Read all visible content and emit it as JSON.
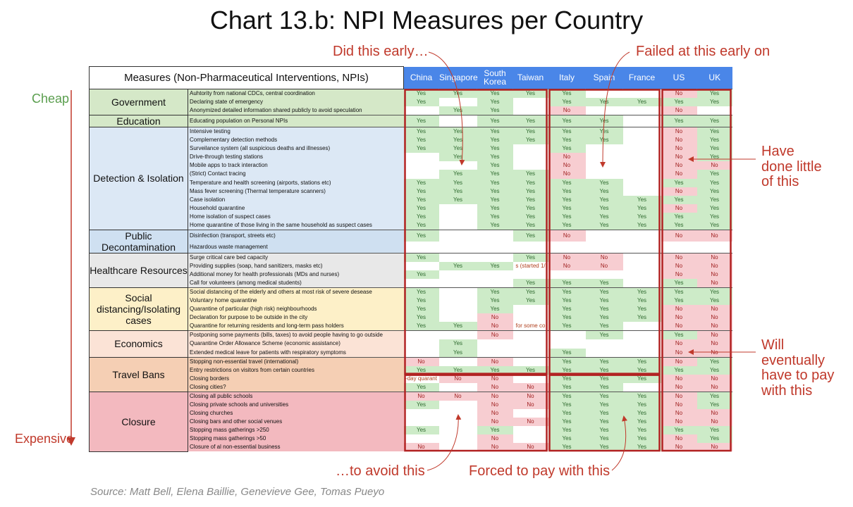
{
  "title": "Chart 13.b: NPI Measures per Country",
  "source": "Source: Matt Bell, Elena Baillie, Genevieve Gee, Tomas Pueyo",
  "side_labels": {
    "top": "Cheap",
    "bottom": "Expensive"
  },
  "annotations": {
    "did_early": "Did this early…",
    "failed_early": "Failed at this early on",
    "done_little": "Have done little of this",
    "pay_eventually": "Will eventually have to pay with this",
    "to_avoid": "…to avoid this",
    "forced_pay": "Forced to pay with this"
  },
  "chart_data": {
    "type": "table",
    "title": "Chart 13.b: NPI Measures per Country",
    "header": "Measures (Non-Pharmaceutical Interventions, NPIs)",
    "countries": [
      "China",
      "Singapore",
      "South Korea",
      "Taiwan",
      "Italy",
      "Spain",
      "France",
      "US",
      "UK"
    ],
    "groups": [
      {
        "name": "Government",
        "colors": {
          "bg": "#d5e8c8"
        },
        "rows": [
          {
            "m": "Auhtority from national CDCs, central coordination",
            "v": [
              "Yes",
              "Yes",
              "Yes",
              "Yes",
              "Yes",
              "",
              "",
              "No",
              "Yes"
            ]
          },
          {
            "m": "Declaring state of emergency",
            "v": [
              "Yes",
              "",
              "Yes",
              "",
              "Yes",
              "Yes",
              "Yes",
              "Yes",
              "Yes"
            ]
          },
          {
            "m": "Anonymized detailed information shared publicly to avoid speculation",
            "v": [
              "",
              "Yes",
              "Yes",
              "",
              "No",
              "",
              "",
              "No",
              ""
            ]
          }
        ]
      },
      {
        "name": "Education",
        "colors": {
          "bg": "#d5e8c8"
        },
        "rows": [
          {
            "m": "Educating population on Personal NPIs",
            "v": [
              "Yes",
              "",
              "Yes",
              "Yes",
              "Yes",
              "Yes",
              "",
              "Yes",
              "Yes"
            ]
          }
        ]
      },
      {
        "name": "Detection & Isolation",
        "colors": {
          "bg": "#dce8f5"
        },
        "rows": [
          {
            "m": "Intensive testing",
            "v": [
              "Yes",
              "Yes",
              "Yes",
              "Yes",
              "Yes",
              "Yes",
              "",
              "No",
              "Yes"
            ]
          },
          {
            "m": "Complementary detection methods",
            "v": [
              "Yes",
              "Yes",
              "Yes",
              "Yes",
              "Yes",
              "Yes",
              "",
              "No",
              "Yes"
            ]
          },
          {
            "m": "Surveilance system (all suspicious deaths and illnesses)",
            "v": [
              "Yes",
              "Yes",
              "Yes",
              "",
              "Yes",
              "",
              "",
              "No",
              "Yes"
            ]
          },
          {
            "m": "Drive-through testing stations",
            "v": [
              "",
              "Yes",
              "Yes",
              "",
              "No",
              "",
              "",
              "No",
              "Yes"
            ]
          },
          {
            "m": "Mobile apps to track interaction",
            "v": [
              "",
              "",
              "Yes",
              "",
              "No",
              "",
              "",
              "No",
              "No"
            ]
          },
          {
            "m": "(Strict) Contact tracing",
            "v": [
              "",
              "Yes",
              "Yes",
              "Yes",
              "No",
              "",
              "",
              "No",
              "Yes"
            ]
          },
          {
            "m": "Temperature and health screening (airports, stations etc)",
            "v": [
              "Yes",
              "Yes",
              "Yes",
              "Yes",
              "Yes",
              "Yes",
              "",
              "Yes",
              "Yes"
            ]
          },
          {
            "m": "Mass fever screening (Thermal temperature scanners)",
            "v": [
              "Yes",
              "Yes",
              "Yes",
              "Yes",
              "Yes",
              "Yes",
              "",
              "No",
              "Yes"
            ]
          },
          {
            "m": "Case isolation",
            "v": [
              "Yes",
              "Yes",
              "Yes",
              "Yes",
              "Yes",
              "Yes",
              "Yes",
              "Yes",
              "Yes"
            ]
          },
          {
            "m": "Household quarantine",
            "v": [
              "Yes",
              "",
              "Yes",
              "Yes",
              "Yes",
              "Yes",
              "Yes",
              "No",
              "Yes"
            ]
          },
          {
            "m": "Home isolation of suspect cases",
            "v": [
              "Yes",
              "",
              "Yes",
              "Yes",
              "Yes",
              "Yes",
              "Yes",
              "Yes",
              "Yes"
            ]
          },
          {
            "m": "Home quarantine of those living in the same household as suspect cases",
            "v": [
              "Yes",
              "",
              "Yes",
              "Yes",
              "Yes",
              "Yes",
              "Yes",
              "Yes",
              "Yes"
            ]
          }
        ]
      },
      {
        "name": "Public Decontamination",
        "colors": {
          "bg": "#cfe0f1"
        },
        "rows": [
          {
            "m": "Disinfection (transport, streets etc)",
            "v": [
              "Yes",
              "",
              "",
              "Yes",
              "No",
              "",
              "",
              "No",
              "No"
            ]
          },
          {
            "m": "Hazardous waste management",
            "v": [
              "",
              "",
              "",
              "",
              "",
              "",
              "",
              "",
              ""
            ]
          }
        ]
      },
      {
        "name": "Healthcare Resources",
        "colors": {
          "bg": "#e8e8e8"
        },
        "rows": [
          {
            "m": "Surge critical care bed capacity",
            "v": [
              "Yes",
              "",
              "",
              "Yes",
              "No",
              "No",
              "",
              "No",
              "No"
            ]
          },
          {
            "m": "Providing supplies (soap, hand sanitizers, masks etc)",
            "v": [
              "",
              "Yes",
              "Yes",
              "s (started 1/",
              "No",
              "No",
              "",
              "No",
              "No"
            ]
          },
          {
            "m": "Additional money for health professionals (MDs and nurses)",
            "v": [
              "Yes",
              "",
              "",
              "",
              "",
              "",
              "",
              "No",
              "No"
            ]
          },
          {
            "m": "Call for volunteers (among medical students)",
            "v": [
              "",
              "",
              "",
              "Yes",
              "Yes",
              "Yes",
              "",
              "Yes",
              "No"
            ]
          }
        ]
      },
      {
        "name": "Social distancing/Isolating cases",
        "colors": {
          "bg": "#fdf0c8"
        },
        "rows": [
          {
            "m": "Social distancing of the elderly and others at most risk of severe desease",
            "v": [
              "Yes",
              "",
              "Yes",
              "Yes",
              "Yes",
              "Yes",
              "Yes",
              "Yes",
              "Yes"
            ]
          },
          {
            "m": "Voluntary home quarantine",
            "v": [
              "Yes",
              "",
              "Yes",
              "Yes",
              "Yes",
              "Yes",
              "Yes",
              "Yes",
              "Yes"
            ]
          },
          {
            "m": "Quarantine of particular (high risk) neighbourhoods",
            "v": [
              "Yes",
              "",
              "Yes",
              "",
              "Yes",
              "Yes",
              "Yes",
              "No",
              "No"
            ]
          },
          {
            "m": "Declaration for purpose to be outside in the city",
            "v": [
              "Yes",
              "",
              "No",
              "",
              "Yes",
              "Yes",
              "Yes",
              "No",
              "No"
            ]
          },
          {
            "m": "Quarantine for returning residents and long-term pass holders",
            "v": [
              "Yes",
              "Yes",
              "No",
              "for some co",
              "Yes",
              "Yes",
              "",
              "No",
              "No"
            ]
          }
        ]
      },
      {
        "name": "Economics",
        "colors": {
          "bg": "#fbe3d6"
        },
        "rows": [
          {
            "m": "Postponing some payments (bills, taxes) to avoid people having to go outside",
            "v": [
              "",
              "",
              "No",
              "",
              "",
              "Yes",
              "",
              "Yes",
              "No"
            ]
          },
          {
            "m": "Quarantine Order Allowance Scheme (economic assistance)",
            "v": [
              "",
              "Yes",
              "",
              "",
              "",
              "",
              "",
              "No",
              "No"
            ]
          },
          {
            "m": "Extended medical leave for patients with respiratory symptoms",
            "v": [
              "",
              "Yes",
              "",
              "",
              "Yes",
              "",
              "",
              "No",
              "No"
            ]
          }
        ]
      },
      {
        "name": "Travel Bans",
        "colors": {
          "bg": "#f5cfb4"
        },
        "rows": [
          {
            "m": "Stopping non-essential travel (international)",
            "v": [
              "No",
              "",
              "No",
              "",
              "Yes",
              "Yes",
              "Yes",
              "No",
              "Yes"
            ]
          },
          {
            "m": "Entry restrictions on visitors from certain countries",
            "v": [
              "Yes",
              "Yes",
              "Yes",
              "Yes",
              "Yes",
              "Yes",
              "Yes",
              "Yes",
              "Yes"
            ]
          },
          {
            "m": "Closing borders",
            "v": [
              "-day quarant",
              "No",
              "No",
              "",
              "Yes",
              "Yes",
              "Yes",
              "No",
              "No"
            ]
          },
          {
            "m": "Closing cities?",
            "v": [
              "Yes",
              "",
              "No",
              "No",
              "Yes",
              "Yes",
              "",
              "No",
              "No"
            ]
          }
        ]
      },
      {
        "name": "Closure",
        "colors": {
          "bg": "#f3b9bf"
        },
        "rows": [
          {
            "m": "Closing all public schools",
            "v": [
              "No",
              "No",
              "No",
              "No",
              "Yes",
              "Yes",
              "Yes",
              "No",
              "Yes"
            ]
          },
          {
            "m": "Closing private schools and universities",
            "v": [
              "Yes",
              "",
              "No",
              "No",
              "Yes",
              "Yes",
              "Yes",
              "No",
              "Yes"
            ]
          },
          {
            "m": "Closing churches",
            "v": [
              "",
              "",
              "No",
              "",
              "Yes",
              "Yes",
              "Yes",
              "No",
              "No"
            ]
          },
          {
            "m": "Closing bars and other social venues",
            "v": [
              "",
              "",
              "No",
              "No",
              "Yes",
              "Yes",
              "Yes",
              "No",
              "No"
            ]
          },
          {
            "m": "Stopping mass gatherings >250",
            "v": [
              "Yes",
              "",
              "Yes",
              "",
              "Yes",
              "Yes",
              "Yes",
              "Yes",
              "Yes"
            ]
          },
          {
            "m": "Stopping mass gatherings >50",
            "v": [
              "",
              "",
              "No",
              "",
              "Yes",
              "Yes",
              "Yes",
              "No",
              "Yes"
            ]
          },
          {
            "m": "Closure of al non-essential business",
            "v": [
              "No",
              "",
              "No",
              "No",
              "Yes",
              "Yes",
              "Yes",
              "No",
              "No"
            ]
          }
        ]
      }
    ]
  }
}
